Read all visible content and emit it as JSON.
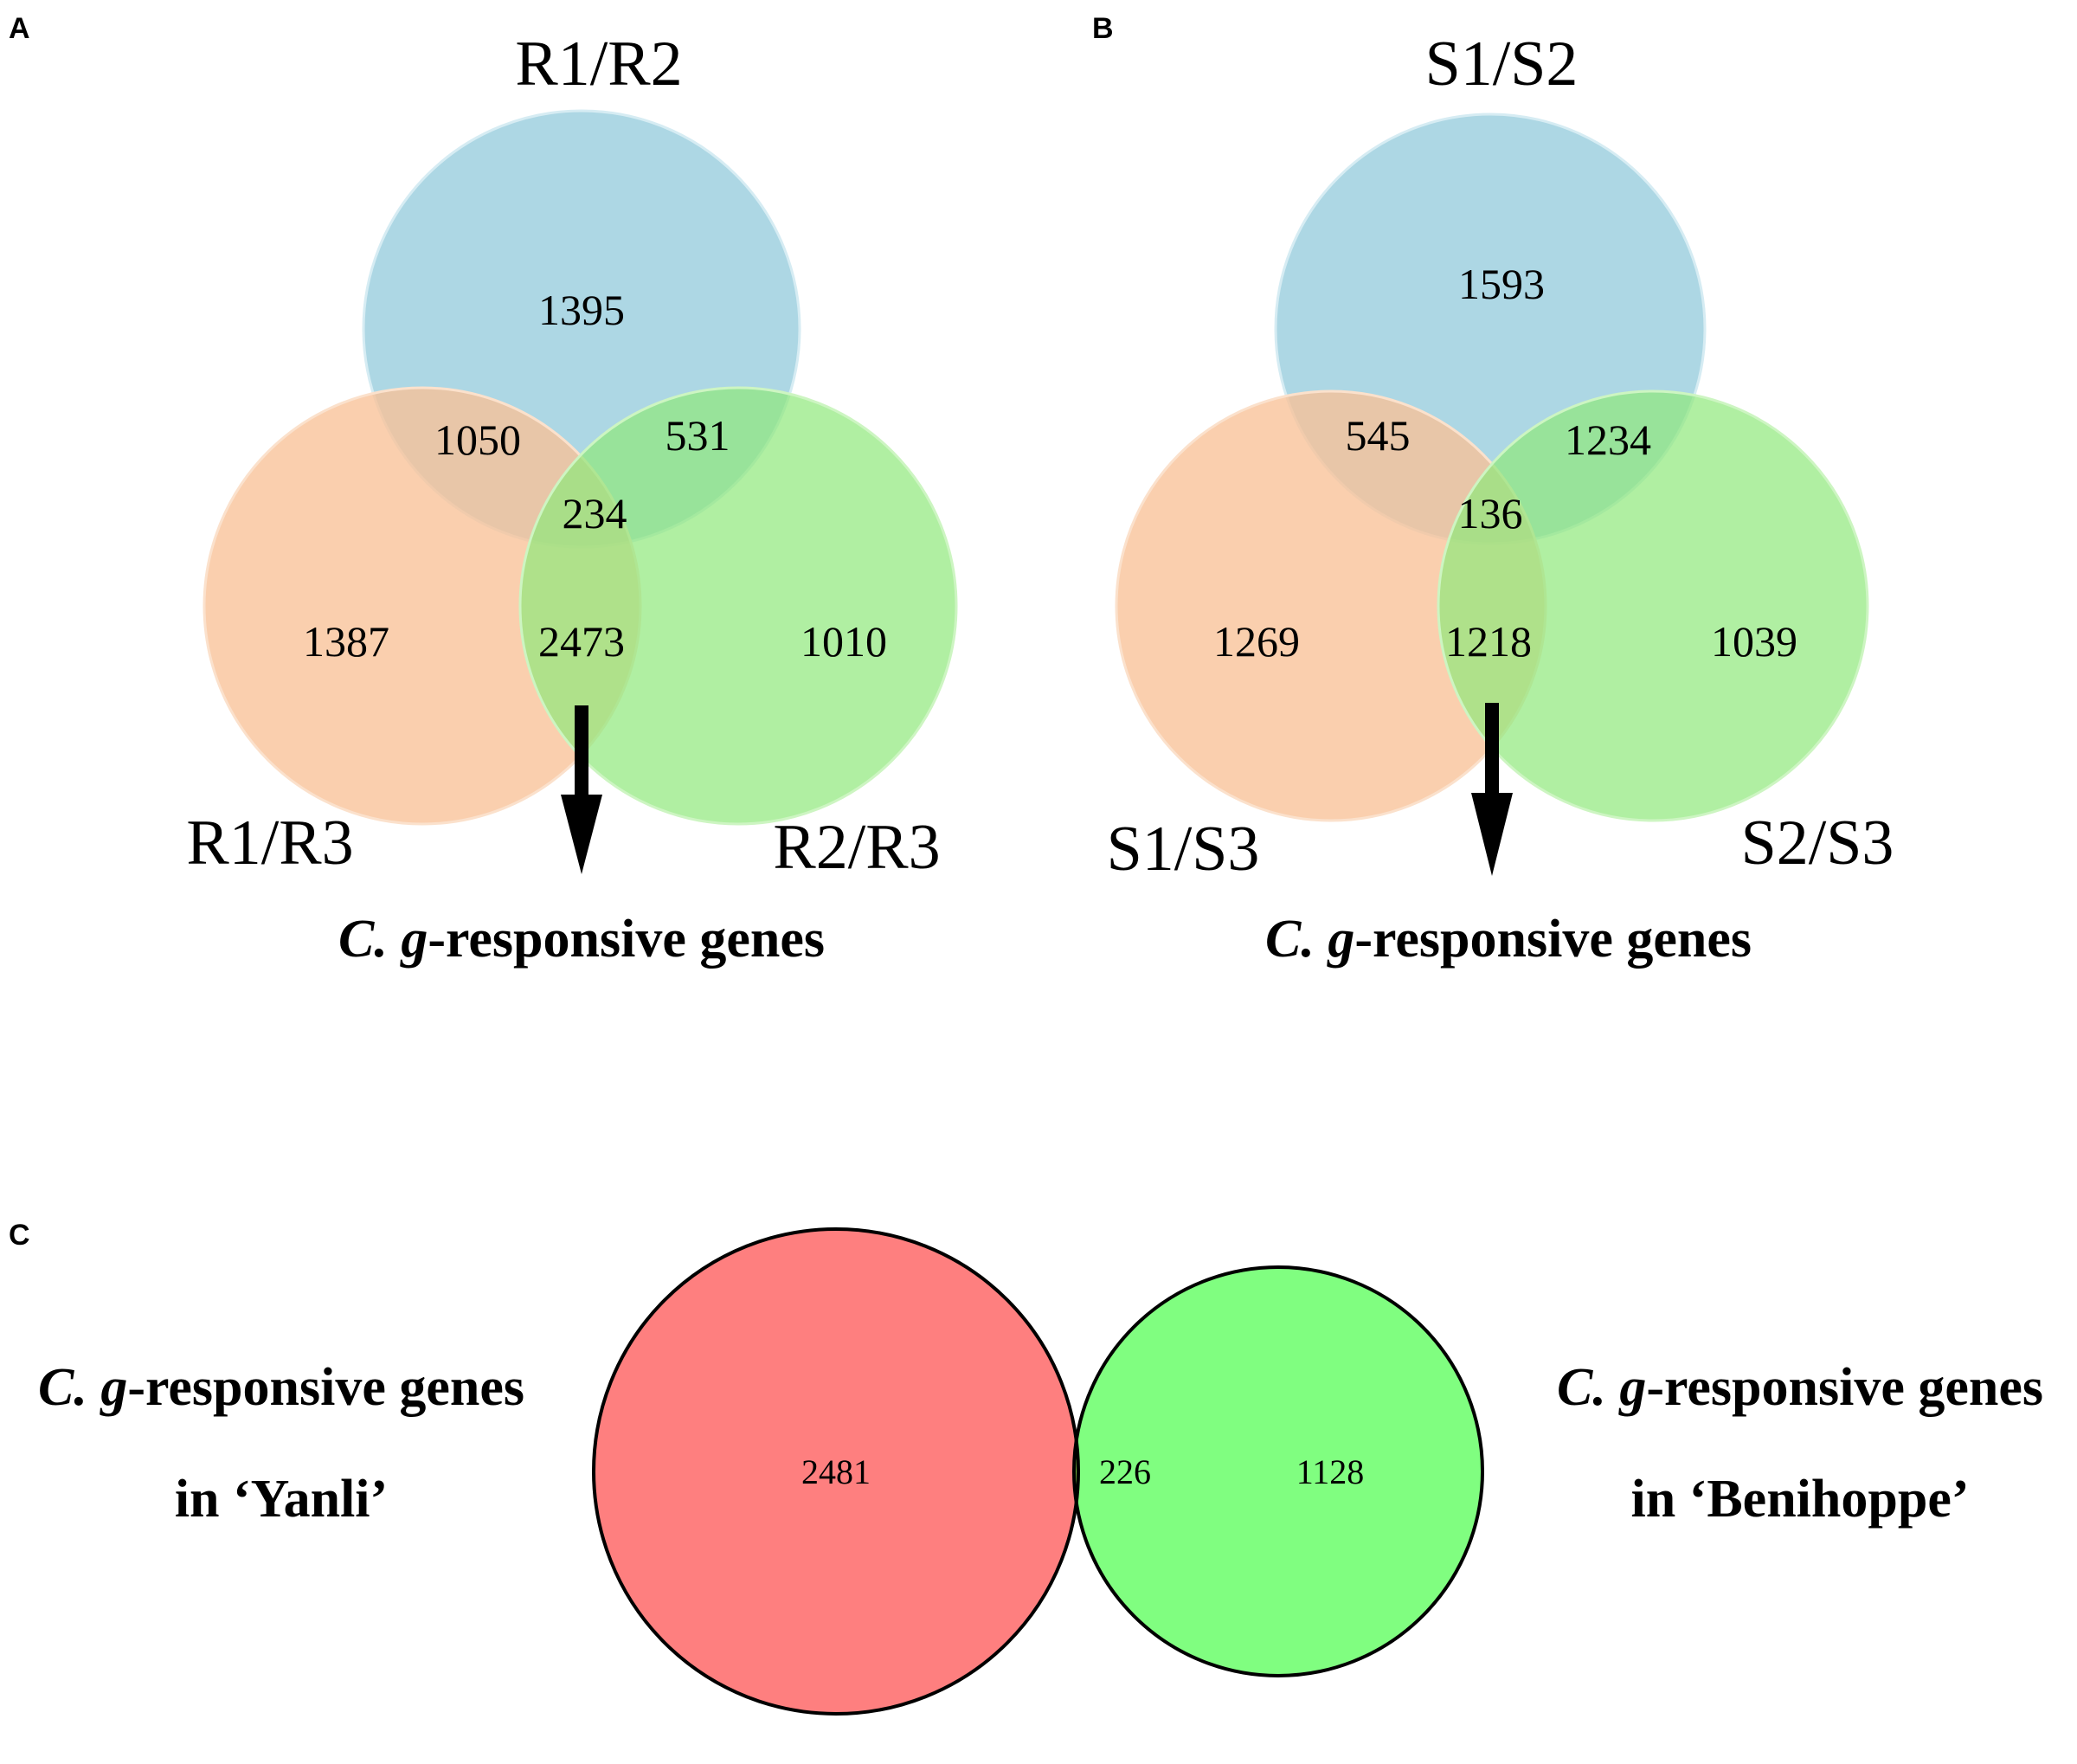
{
  "panel_a": {
    "letter": "A",
    "sets": {
      "top": "R1/R2",
      "left": "R1/R3",
      "right": "R2/R3"
    },
    "counts": {
      "top_only": "1395",
      "left_only": "1387",
      "right_only": "1010",
      "top_left": "1050",
      "top_right": "531",
      "left_right": "2473",
      "all": "234"
    },
    "caption_italic": "C. g",
    "caption_rest": "-responsive genes"
  },
  "panel_b": {
    "letter": "B",
    "sets": {
      "top": "S1/S2",
      "left": "S1/S3",
      "right": "S2/S3"
    },
    "counts": {
      "top_only": "1593",
      "left_only": "1269",
      "right_only": "1039",
      "top_left": "545",
      "top_right": "1234",
      "left_right": "1218",
      "all": "136"
    },
    "caption_italic": "C. g",
    "caption_rest": "-responsive genes"
  },
  "panel_c": {
    "letter": "C",
    "left_label": {
      "italic": "C. g",
      "rest": "-responsive genes",
      "line2": "in ‘Yanli’"
    },
    "right_label": {
      "italic": "C. g",
      "rest": "-responsive genes",
      "line2": "in ‘Benihoppe’"
    },
    "counts": {
      "left_only": "2481",
      "overlap": "226",
      "right_only": "1128"
    }
  },
  "colors": {
    "blue": "#9fd0df",
    "orange": "#f9c297",
    "green": "#a6ef93",
    "red": "#fe7f7f",
    "lime": "#80fe80",
    "overlap_c": "#7fbf40"
  }
}
